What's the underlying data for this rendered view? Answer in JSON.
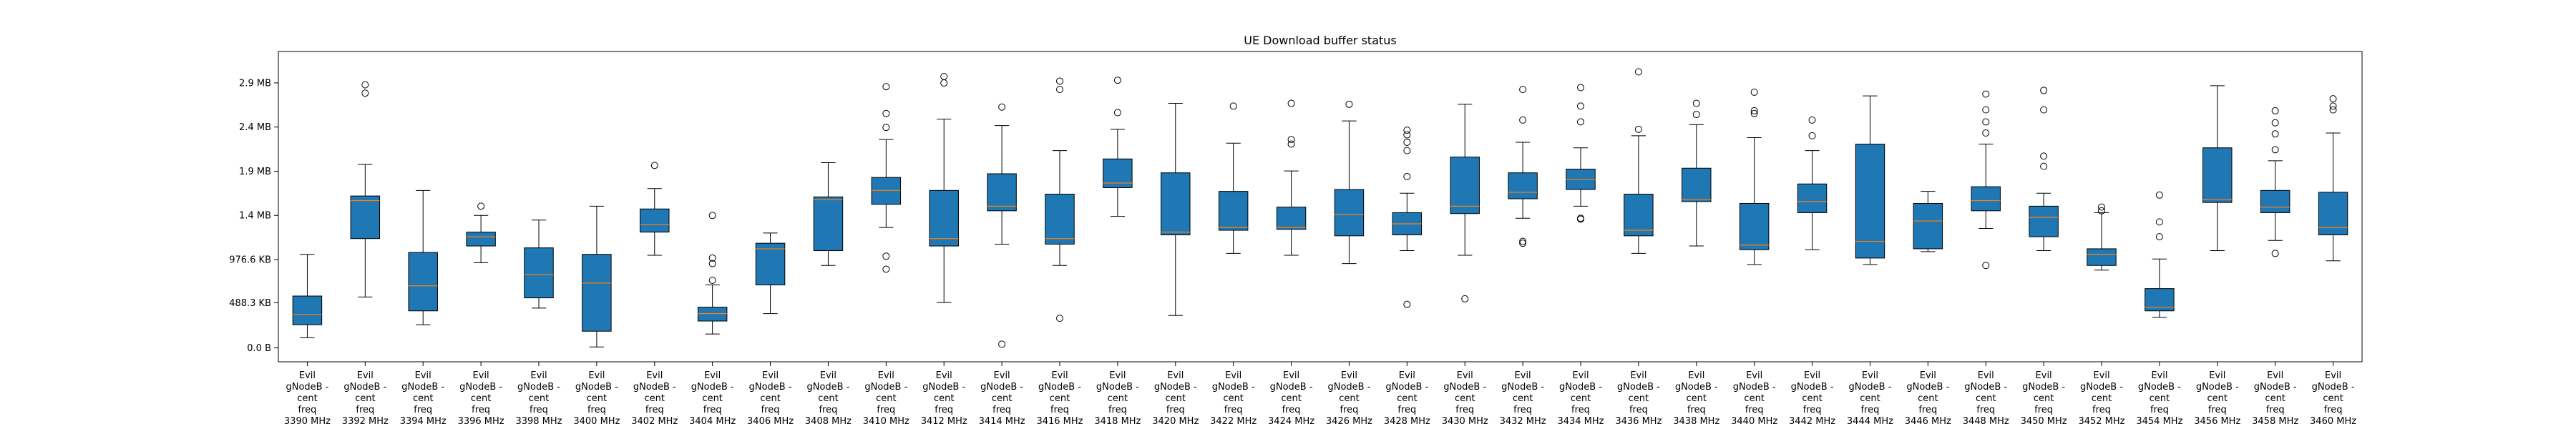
{
  "chart_data": {
    "type": "box",
    "title": "UE Download buffer status",
    "xlabel": "",
    "ylabel": "",
    "unit": "MB",
    "ylim": [
      -0.15,
      3.2
    ],
    "yticks": [
      {
        "value": 0,
        "label": "0.0 B"
      },
      {
        "value": 0.4883,
        "label": "488.3 KB"
      },
      {
        "value": 0.9537,
        "label": "976.6 KB"
      },
      {
        "value": 1.4305,
        "label": "1.4 MB"
      },
      {
        "value": 1.9073,
        "label": "1.9 MB"
      },
      {
        "value": 2.3842,
        "label": "2.4 MB"
      },
      {
        "value": 2.861,
        "label": "2.9 MB"
      }
    ],
    "grid": false,
    "box_color": "#1f77b4",
    "median_color": "#ff7f0e",
    "categories": [
      [
        "Evil",
        "gNodeB -",
        "cent",
        "freq",
        "3390 MHz"
      ],
      [
        "Evil",
        "gNodeB -",
        "cent",
        "freq",
        "3392 MHz"
      ],
      [
        "Evil",
        "gNodeB -",
        "cent",
        "freq",
        "3394 MHz"
      ],
      [
        "Evil",
        "gNodeB -",
        "cent",
        "freq",
        "3396 MHz"
      ],
      [
        "Evil",
        "gNodeB -",
        "cent",
        "freq",
        "3398 MHz"
      ],
      [
        "Evil",
        "gNodeB -",
        "cent",
        "freq",
        "3400 MHz"
      ],
      [
        "Evil",
        "gNodeB -",
        "cent",
        "freq",
        "3402 MHz"
      ],
      [
        "Evil",
        "gNodeB -",
        "cent",
        "freq",
        "3404 MHz"
      ],
      [
        "Evil",
        "gNodeB -",
        "cent",
        "freq",
        "3406 MHz"
      ],
      [
        "Evil",
        "gNodeB -",
        "cent",
        "freq",
        "3408 MHz"
      ],
      [
        "Evil",
        "gNodeB -",
        "cent",
        "freq",
        "3410 MHz"
      ],
      [
        "Evil",
        "gNodeB -",
        "cent",
        "freq",
        "3412 MHz"
      ],
      [
        "Evil",
        "gNodeB -",
        "cent",
        "freq",
        "3414 MHz"
      ],
      [
        "Evil",
        "gNodeB -",
        "cent",
        "freq",
        "3416 MHz"
      ],
      [
        "Evil",
        "gNodeB -",
        "cent",
        "freq",
        "3418 MHz"
      ],
      [
        "Evil",
        "gNodeB -",
        "cent",
        "freq",
        "3420 MHz"
      ],
      [
        "Evil",
        "gNodeB -",
        "cent",
        "freq",
        "3422 MHz"
      ],
      [
        "Evil",
        "gNodeB -",
        "cent",
        "freq",
        "3424 MHz"
      ],
      [
        "Evil",
        "gNodeB -",
        "cent",
        "freq",
        "3426 MHz"
      ],
      [
        "Evil",
        "gNodeB -",
        "cent",
        "freq",
        "3428 MHz"
      ],
      [
        "Evil",
        "gNodeB -",
        "cent",
        "freq",
        "3430 MHz"
      ],
      [
        "Evil",
        "gNodeB -",
        "cent",
        "freq",
        "3432 MHz"
      ],
      [
        "Evil",
        "gNodeB -",
        "cent",
        "freq",
        "3434 MHz"
      ],
      [
        "Evil",
        "gNodeB -",
        "cent",
        "freq",
        "3436 MHz"
      ],
      [
        "Evil",
        "gNodeB -",
        "cent",
        "freq",
        "3438 MHz"
      ],
      [
        "Evil",
        "gNodeB -",
        "cent",
        "freq",
        "3440 MHz"
      ],
      [
        "Evil",
        "gNodeB -",
        "cent",
        "freq",
        "3442 MHz"
      ],
      [
        "Evil",
        "gNodeB -",
        "cent",
        "freq",
        "3444 MHz"
      ],
      [
        "Evil",
        "gNodeB -",
        "cent",
        "freq",
        "3446 MHz"
      ],
      [
        "Evil",
        "gNodeB -",
        "cent",
        "freq",
        "3448 MHz"
      ],
      [
        "Evil",
        "gNodeB -",
        "cent",
        "freq",
        "3450 MHz"
      ],
      [
        "Evil",
        "gNodeB -",
        "cent",
        "freq",
        "3452 MHz"
      ],
      [
        "Evil",
        "gNodeB -",
        "cent",
        "freq",
        "3454 MHz"
      ],
      [
        "Evil",
        "gNodeB -",
        "cent",
        "freq",
        "3456 MHz"
      ],
      [
        "Evil",
        "gNodeB -",
        "cent",
        "freq",
        "3458 MHz"
      ],
      [
        "Evil",
        "gNodeB -",
        "cent",
        "freq",
        "3460 MHz"
      ]
    ],
    "boxes": [
      {
        "whislo": 0.11,
        "q1": 0.25,
        "med": 0.36,
        "q3": 0.56,
        "whishi": 1.01,
        "fliers": []
      },
      {
        "whislo": 0.55,
        "q1": 1.18,
        "med": 1.59,
        "q3": 1.64,
        "whishi": 1.98,
        "fliers": [
          2.75,
          2.84
        ]
      },
      {
        "whislo": 0.25,
        "q1": 0.4,
        "med": 0.67,
        "q3": 1.03,
        "whishi": 1.7,
        "fliers": []
      },
      {
        "whislo": 0.92,
        "q1": 1.1,
        "med": 1.2,
        "q3": 1.25,
        "whishi": 1.43,
        "fliers": [
          1.53
        ]
      },
      {
        "whislo": 0.43,
        "q1": 0.54,
        "med": 0.79,
        "q3": 1.08,
        "whishi": 1.38,
        "fliers": []
      },
      {
        "whislo": 0.01,
        "q1": 0.18,
        "med": 0.7,
        "q3": 1.01,
        "whishi": 1.53,
        "fliers": []
      },
      {
        "whislo": 1.0,
        "q1": 1.25,
        "med": 1.33,
        "q3": 1.5,
        "whishi": 1.72,
        "fliers": [
          1.97
        ]
      },
      {
        "whislo": 0.15,
        "q1": 0.29,
        "med": 0.37,
        "q3": 0.44,
        "whishi": 0.68,
        "fliers": [
          0.73,
          0.91,
          0.97,
          1.43
        ]
      },
      {
        "whislo": 0.37,
        "q1": 0.68,
        "med": 1.07,
        "q3": 1.13,
        "whishi": 1.24,
        "fliers": []
      },
      {
        "whislo": 0.89,
        "q1": 1.05,
        "med": 1.6,
        "q3": 1.63,
        "whishi": 2.0,
        "fliers": []
      },
      {
        "whislo": 1.3,
        "q1": 1.55,
        "med": 1.7,
        "q3": 1.84,
        "whishi": 2.25,
        "fliers": [
          0.85,
          0.99,
          2.38,
          2.53,
          2.82
        ]
      },
      {
        "whislo": 0.49,
        "q1": 1.1,
        "med": 1.18,
        "q3": 1.7,
        "whishi": 2.47,
        "fliers": [
          2.86,
          2.93
        ]
      },
      {
        "whislo": 1.12,
        "q1": 1.48,
        "med": 1.53,
        "q3": 1.88,
        "whishi": 2.4,
        "fliers": [
          0.04,
          2.6
        ]
      },
      {
        "whislo": 0.89,
        "q1": 1.12,
        "med": 1.18,
        "q3": 1.66,
        "whishi": 2.13,
        "fliers": [
          0.32,
          2.79,
          2.88
        ]
      },
      {
        "whislo": 1.42,
        "q1": 1.73,
        "med": 1.78,
        "q3": 2.04,
        "whishi": 2.36,
        "fliers": [
          2.54,
          2.89
        ]
      },
      {
        "whislo": 0.35,
        "q1": 1.22,
        "med": 1.25,
        "q3": 1.89,
        "whishi": 2.64,
        "fliers": []
      },
      {
        "whislo": 1.02,
        "q1": 1.27,
        "med": 1.3,
        "q3": 1.69,
        "whishi": 2.21,
        "fliers": [
          2.61
        ]
      },
      {
        "whislo": 1.0,
        "q1": 1.28,
        "med": 1.3,
        "q3": 1.52,
        "whishi": 1.91,
        "fliers": [
          2.2,
          2.25,
          2.64
        ]
      },
      {
        "whislo": 0.91,
        "q1": 1.21,
        "med": 1.44,
        "q3": 1.71,
        "whishi": 2.45,
        "fliers": [
          2.63
        ]
      },
      {
        "whislo": 1.05,
        "q1": 1.22,
        "med": 1.34,
        "q3": 1.46,
        "whishi": 1.67,
        "fliers": [
          0.47,
          1.85,
          2.13,
          2.22,
          2.3,
          2.35
        ]
      },
      {
        "whislo": 1.0,
        "q1": 1.45,
        "med": 1.53,
        "q3": 2.06,
        "whishi": 2.63,
        "fliers": [
          0.53
        ]
      },
      {
        "whislo": 1.4,
        "q1": 1.61,
        "med": 1.68,
        "q3": 1.89,
        "whishi": 2.22,
        "fliers": [
          1.13,
          1.15,
          2.46,
          2.79
        ]
      },
      {
        "whislo": 1.53,
        "q1": 1.71,
        "med": 1.82,
        "q3": 1.93,
        "whishi": 2.16,
        "fliers": [
          1.39,
          1.4,
          2.44,
          2.61,
          2.81
        ]
      },
      {
        "whislo": 1.02,
        "q1": 1.21,
        "med": 1.27,
        "q3": 1.66,
        "whishi": 2.29,
        "fliers": [
          2.36,
          2.98
        ]
      },
      {
        "whislo": 1.1,
        "q1": 1.58,
        "med": 1.6,
        "q3": 1.94,
        "whishi": 2.41,
        "fliers": [
          2.52,
          2.64
        ]
      },
      {
        "whislo": 0.9,
        "q1": 1.06,
        "med": 1.11,
        "q3": 1.56,
        "whishi": 2.27,
        "fliers": [
          2.53,
          2.56,
          2.76
        ]
      },
      {
        "whislo": 1.06,
        "q1": 1.46,
        "med": 1.58,
        "q3": 1.77,
        "whishi": 2.13,
        "fliers": [
          2.29,
          2.46
        ]
      },
      {
        "whislo": 0.9,
        "q1": 0.97,
        "med": 1.15,
        "q3": 2.2,
        "whishi": 2.72,
        "fliers": []
      },
      {
        "whislo": 1.04,
        "q1": 1.07,
        "med": 1.37,
        "q3": 1.56,
        "whishi": 1.69,
        "fliers": []
      },
      {
        "whislo": 1.29,
        "q1": 1.48,
        "med": 1.59,
        "q3": 1.74,
        "whishi": 2.2,
        "fliers": [
          0.89,
          2.32,
          2.44,
          2.57,
          2.74
        ]
      },
      {
        "whislo": 1.05,
        "q1": 1.2,
        "med": 1.41,
        "q3": 1.53,
        "whishi": 1.67,
        "fliers": [
          1.96,
          2.07,
          2.57,
          2.78
        ]
      },
      {
        "whislo": 0.84,
        "q1": 0.89,
        "med": 1.01,
        "q3": 1.07,
        "whishi": 1.46,
        "fliers": [
          1.48,
          1.52
        ]
      },
      {
        "whislo": 0.33,
        "q1": 0.4,
        "med": 0.44,
        "q3": 0.64,
        "whishi": 0.96,
        "fliers": [
          1.2,
          1.36,
          1.65
        ]
      },
      {
        "whislo": 1.05,
        "q1": 1.57,
        "med": 1.6,
        "q3": 2.16,
        "whishi": 2.83,
        "fliers": []
      },
      {
        "whislo": 1.16,
        "q1": 1.46,
        "med": 1.52,
        "q3": 1.7,
        "whishi": 2.02,
        "fliers": [
          1.02,
          2.14,
          2.31,
          2.43,
          2.56
        ]
      },
      {
        "whislo": 0.94,
        "q1": 1.22,
        "med": 1.3,
        "q3": 1.68,
        "whishi": 2.32,
        "fliers": [
          2.57,
          2.61,
          2.69
        ]
      }
    ]
  }
}
